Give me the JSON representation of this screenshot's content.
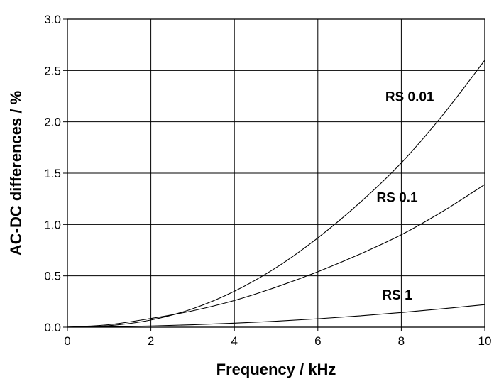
{
  "chart_data": {
    "type": "line",
    "title": "",
    "xlabel": "Frequency / kHz",
    "ylabel": "AC-DC differences / %",
    "xlim": [
      0,
      10
    ],
    "ylim": [
      0,
      3.0
    ],
    "x_ticks": [
      "0",
      "2",
      "4",
      "6",
      "8",
      "10"
    ],
    "y_ticks": [
      "0.0",
      "0.5",
      "1.0",
      "1.5",
      "2.0",
      "2.5",
      "3.0"
    ],
    "grid": true,
    "series": [
      {
        "name": "RS 0.01",
        "x": [
          0,
          1,
          2,
          3,
          4,
          5,
          6,
          7,
          8,
          9,
          10
        ],
        "y": [
          0,
          0.015,
          0.07,
          0.18,
          0.35,
          0.58,
          0.87,
          1.21,
          1.6,
          2.07,
          2.6
        ],
        "label_at": [
          8.2,
          2.2
        ]
      },
      {
        "name": "RS 0.1",
        "x": [
          0,
          1,
          2,
          3,
          4,
          5,
          6,
          7,
          8,
          9,
          10
        ],
        "y": [
          0,
          0.025,
          0.085,
          0.16,
          0.26,
          0.39,
          0.54,
          0.71,
          0.9,
          1.13,
          1.39
        ],
        "label_at": [
          7.9,
          1.22
        ]
      },
      {
        "name": "RS 1",
        "x": [
          0,
          1,
          2,
          3,
          4,
          5,
          6,
          7,
          8,
          9,
          10
        ],
        "y": [
          0,
          0.004,
          0.012,
          0.024,
          0.039,
          0.058,
          0.082,
          0.11,
          0.143,
          0.18,
          0.22
        ],
        "label_at": [
          7.9,
          0.27
        ]
      }
    ]
  }
}
